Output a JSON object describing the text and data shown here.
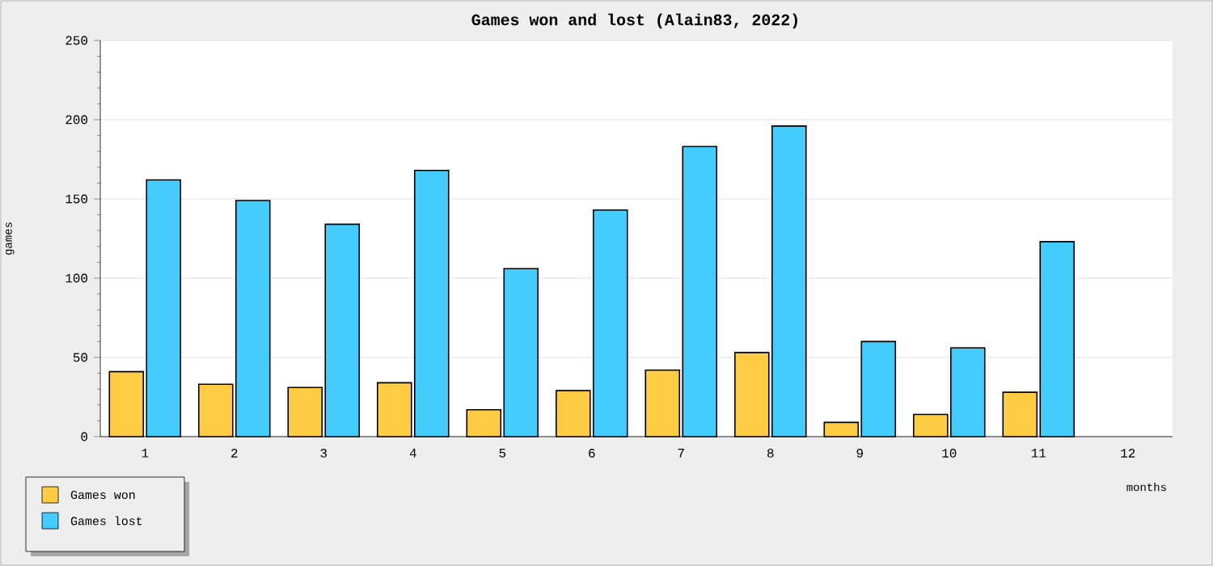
{
  "chart_data": {
    "type": "bar",
    "title": "Games won and lost (Alain83, 2022)",
    "xlabel": "months",
    "ylabel": "games",
    "categories": [
      "1",
      "2",
      "3",
      "4",
      "5",
      "6",
      "7",
      "8",
      "9",
      "10",
      "11",
      "12"
    ],
    "series": [
      {
        "name": "Games won",
        "color": "#ffcc44",
        "values": [
          41,
          33,
          31,
          34,
          17,
          29,
          42,
          53,
          9,
          14,
          28,
          null
        ]
      },
      {
        "name": "Games lost",
        "color": "#44ccff",
        "values": [
          162,
          149,
          134,
          168,
          106,
          143,
          183,
          196,
          60,
          56,
          123,
          null
        ]
      }
    ],
    "ylim": [
      0,
      250
    ],
    "yticks": [
      0,
      50,
      100,
      150,
      200,
      250
    ],
    "grid": "y",
    "legend": "bottom left"
  }
}
